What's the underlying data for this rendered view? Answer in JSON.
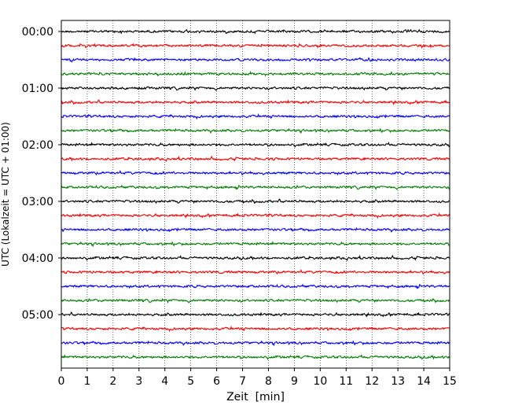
{
  "chart_data": {
    "type": "line",
    "title": "",
    "xlabel": "Zeit  [min]",
    "ylabel": "UTC (Lokalzeit = UTC + 01:00)",
    "xlim": [
      0,
      15
    ],
    "x_ticks": [
      "0",
      "1",
      "2",
      "3",
      "4",
      "5",
      "6",
      "7",
      "8",
      "9",
      "10",
      "11",
      "12",
      "13",
      "14",
      "15"
    ],
    "y_ticks": [
      "00:00",
      "01:00",
      "02:00",
      "03:00",
      "04:00",
      "05:00"
    ],
    "trace_interval_minutes": 15,
    "trace_count": 24,
    "trace_colors": [
      "#000000",
      "#ff0000",
      "#0000ff",
      "#008000"
    ],
    "grid": "vertical dotted lines at each minute",
    "legend": "none"
  }
}
